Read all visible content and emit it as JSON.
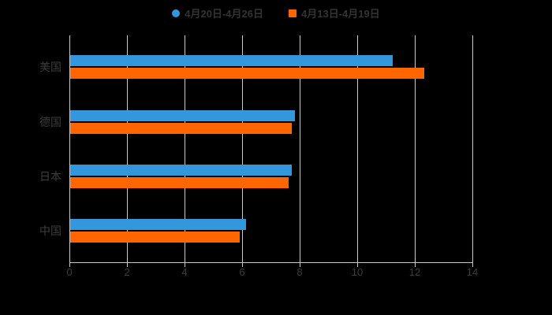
{
  "chart_data": {
    "type": "bar",
    "orientation": "horizontal",
    "title": "",
    "categories": [
      "美国",
      "德国",
      "日本",
      "中国"
    ],
    "series": [
      {
        "name": "4月20日-4月26日",
        "color": "#3398DB",
        "marker": "circle",
        "values": [
          11.2,
          7.8,
          7.7,
          6.1
        ]
      },
      {
        "name": "4月13日-4月19日",
        "color": "#FF6600",
        "marker": "square",
        "values": [
          12.3,
          7.7,
          7.6,
          5.9
        ]
      }
    ],
    "xlim": [
      0,
      14
    ],
    "xticks": [
      0,
      2,
      4,
      6,
      8,
      10,
      12,
      14
    ],
    "grid": true,
    "legend_position": "top-center"
  },
  "colors": {
    "background": "#000000",
    "text": "#3d3d3d",
    "legend_text": "#333333",
    "gridline": "#cccccc",
    "axis": "#c9c9c9"
  }
}
